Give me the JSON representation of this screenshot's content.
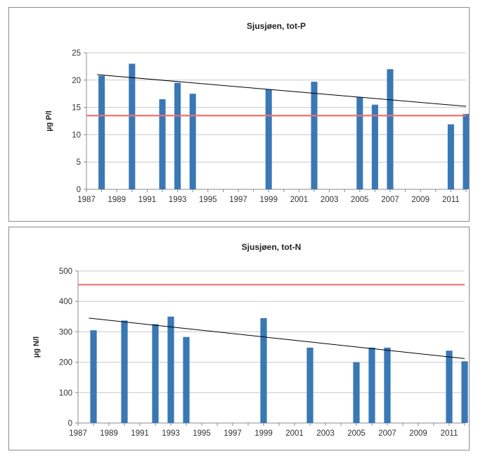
{
  "chart_data": [
    {
      "type": "bar",
      "title": "Sjusjøen, tot-P",
      "ylabel": "µg P/l",
      "xlabel": "",
      "ylim": [
        0,
        25
      ],
      "yticks": [
        0,
        5,
        10,
        15,
        20,
        25
      ],
      "xlim": [
        1987,
        2012
      ],
      "xticks": [
        1987,
        1989,
        1991,
        1993,
        1995,
        1997,
        1999,
        2001,
        2003,
        2005,
        2007,
        2009,
        2011
      ],
      "grid": true,
      "bar_color": "#3a78b5",
      "series": [
        {
          "x": [
            1988,
            1990,
            1992,
            1993,
            1994,
            1999,
            2002,
            2005,
            2006,
            2007,
            2011,
            2012
          ],
          "values": [
            20.8,
            23.0,
            16.5,
            19.5,
            17.5,
            18.3,
            19.7,
            16.9,
            15.5,
            22.0,
            11.9,
            13.8
          ]
        }
      ],
      "reference_line": {
        "value": 13.5,
        "color": "#f07070"
      },
      "trend_line": {
        "x": [
          1987.7,
          2012
        ],
        "y": [
          21.0,
          15.2
        ],
        "color": "#000000"
      }
    },
    {
      "type": "bar",
      "title": "Sjusjøen, tot-N",
      "ylabel": "µg N/l",
      "xlabel": "",
      "ylim": [
        0,
        500
      ],
      "yticks": [
        0,
        100,
        200,
        300,
        400,
        500
      ],
      "xlim": [
        1987,
        2012
      ],
      "xticks": [
        1987,
        1989,
        1991,
        1993,
        1995,
        1997,
        1999,
        2001,
        2003,
        2005,
        2007,
        2009,
        2011
      ],
      "grid": true,
      "bar_color": "#3a78b5",
      "series": [
        {
          "x": [
            1988,
            1990,
            1992,
            1993,
            1994,
            1999,
            2002,
            2005,
            2006,
            2007,
            2011,
            2012
          ],
          "values": [
            305,
            337,
            325,
            350,
            283,
            345,
            248,
            200,
            248,
            248,
            238,
            203
          ]
        }
      ],
      "reference_line": {
        "value": 455,
        "color": "#f07070"
      },
      "trend_line": {
        "x": [
          1987.7,
          2012
        ],
        "y": [
          345,
          212
        ],
        "color": "#000000"
      }
    }
  ]
}
